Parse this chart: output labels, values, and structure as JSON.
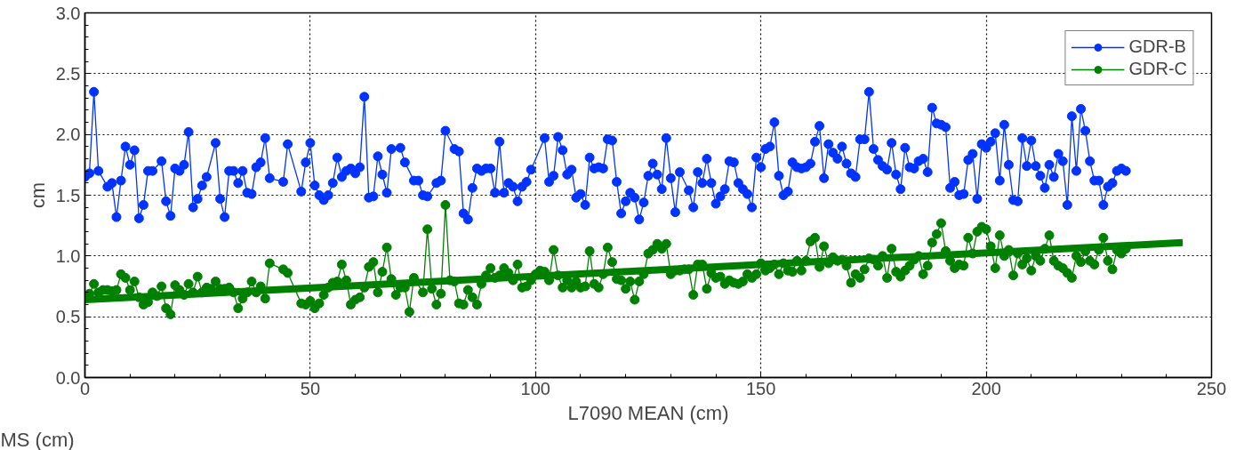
{
  "chart_data": {
    "type": "line",
    "xlabel": "L7090 MEAN (cm)",
    "ylabel": "cm",
    "xlim": [
      0,
      250
    ],
    "xticks": [
      0,
      50,
      100,
      150,
      200,
      250
    ],
    "ylim": [
      0,
      3
    ],
    "yticks": [
      {
        "value": 0,
        "label": "0.0"
      },
      0.5,
      {
        "value": 1,
        "label": "1.0"
      },
      1.5,
      {
        "value": 2,
        "label": "2.0"
      },
      2.5,
      {
        "value": 3,
        "label": "3.0"
      }
    ],
    "grid": true,
    "legend": "top right",
    "marker": "circle",
    "line_style": "solid",
    "annotations": [
      "MS (cm)"
    ],
    "series": [
      {
        "name": "GDR-B",
        "color": "#0033ff",
        "x": [
          0,
          1,
          2,
          3,
          5,
          6,
          7,
          8,
          9,
          10,
          11,
          12,
          13,
          14,
          15,
          17,
          18,
          19,
          20,
          21,
          22,
          23,
          24,
          25,
          26,
          27,
          29,
          30,
          31,
          32,
          33,
          34,
          35,
          36,
          37,
          38,
          39,
          40,
          41,
          44,
          45,
          48,
          49,
          50,
          51,
          52,
          53,
          54,
          55,
          56,
          57,
          58,
          59,
          60,
          61,
          62,
          63,
          64,
          65,
          66,
          67,
          68,
          70,
          71,
          73,
          74,
          75,
          76,
          78,
          79,
          80,
          82,
          83,
          84,
          85,
          86,
          87,
          88,
          89,
          90,
          91,
          92,
          93,
          94,
          95,
          96,
          97,
          98,
          99,
          102,
          103,
          104,
          105,
          106,
          107,
          108,
          109,
          110,
          111,
          112,
          113,
          114,
          115,
          116,
          117,
          118,
          119,
          120,
          121,
          122,
          123,
          124,
          125,
          126,
          127,
          128,
          129,
          130,
          131,
          132,
          134,
          135,
          136,
          137,
          138,
          139,
          140,
          141,
          142,
          143,
          144,
          145,
          146,
          147,
          148,
          149,
          150,
          151,
          152,
          153,
          154,
          155,
          156,
          157,
          158,
          159,
          160,
          161,
          162,
          163,
          164,
          165,
          166,
          167,
          168,
          169,
          170,
          171,
          172,
          173,
          174,
          175,
          176,
          177,
          178,
          179,
          180,
          181,
          182,
          183,
          184,
          185,
          186,
          187,
          188,
          189,
          190,
          191,
          192,
          193,
          194,
          195,
          196,
          197,
          198,
          199,
          200,
          201,
          202,
          203,
          204,
          205,
          206,
          207,
          208,
          209,
          210,
          211,
          212,
          213,
          214,
          215,
          216,
          217,
          218,
          219,
          220,
          221,
          222,
          223,
          224,
          225,
          226,
          227,
          228,
          229,
          230,
          231
        ],
        "values": [
          1.65,
          1.68,
          2.35,
          1.7,
          1.57,
          1.6,
          1.32,
          1.62,
          1.9,
          1.75,
          1.87,
          1.31,
          1.42,
          1.7,
          1.7,
          1.78,
          1.45,
          1.33,
          1.72,
          1.7,
          1.75,
          2.02,
          1.4,
          1.47,
          1.58,
          1.65,
          1.93,
          1.47,
          1.32,
          1.7,
          1.7,
          1.6,
          1.7,
          1.52,
          1.51,
          1.73,
          1.77,
          1.97,
          1.64,
          1.61,
          1.92,
          1.53,
          1.77,
          1.93,
          1.58,
          1.5,
          1.46,
          1.5,
          1.6,
          1.81,
          1.65,
          1.7,
          1.72,
          1.68,
          1.73,
          2.31,
          1.48,
          1.49,
          1.82,
          1.67,
          1.52,
          1.88,
          1.89,
          1.77,
          1.62,
          1.62,
          1.5,
          1.49,
          1.6,
          1.62,
          2.03,
          1.88,
          1.86,
          1.35,
          1.3,
          1.56,
          1.72,
          1.7,
          1.72,
          1.72,
          1.52,
          1.94,
          1.52,
          1.6,
          1.57,
          1.45,
          1.57,
          1.61,
          1.71,
          1.97,
          1.61,
          1.66,
          1.98,
          1.87,
          1.67,
          1.71,
          1.48,
          1.51,
          1.42,
          1.81,
          1.72,
          1.73,
          1.72,
          1.96,
          1.95,
          1.61,
          1.35,
          1.45,
          1.52,
          1.48,
          1.3,
          1.44,
          1.66,
          1.76,
          1.67,
          1.55,
          1.97,
          1.64,
          1.36,
          1.69,
          1.54,
          1.4,
          1.69,
          1.6,
          1.8,
          1.6,
          1.43,
          1.49,
          1.55,
          1.78,
          1.77,
          1.6,
          1.55,
          1.51,
          1.4,
          1.81,
          1.73,
          1.88,
          1.9,
          2.1,
          1.66,
          1.5,
          1.53,
          1.77,
          1.73,
          1.72,
          1.73,
          1.76,
          1.94,
          2.07,
          1.64,
          1.92,
          1.85,
          1.8,
          1.9,
          1.76,
          1.68,
          1.65,
          1.96,
          1.96,
          2.35,
          1.88,
          1.79,
          1.74,
          1.71,
          1.93,
          1.67,
          1.55,
          1.89,
          1.73,
          1.72,
          1.78,
          1.8,
          1.69,
          2.22,
          2.09,
          2.08,
          2.06,
          1.56,
          1.61,
          1.5,
          1.51,
          1.79,
          1.84,
          1.47,
          1.92,
          1.89,
          1.94,
          2.01,
          1.62,
          2.08,
          1.75,
          1.46,
          1.45,
          1.97,
          1.74,
          1.95,
          1.74,
          1.66,
          1.56,
          1.75,
          1.65,
          1.84,
          1.78,
          1.42,
          2.15,
          1.7,
          2.21,
          2.03,
          1.78,
          1.62,
          1.62,
          1.42,
          1.57,
          1.6,
          1.7,
          1.72,
          1.7
        ]
      },
      {
        "name": "GDR-C",
        "color": "#008000",
        "x": [
          0,
          1,
          2,
          3,
          4,
          5,
          6,
          7,
          8,
          9,
          10,
          11,
          12,
          13,
          14,
          15,
          16,
          17,
          18,
          19,
          20,
          21,
          22,
          23,
          24,
          25,
          26,
          27,
          28,
          29,
          30,
          31,
          32,
          33,
          34,
          35,
          36,
          37,
          38,
          39,
          40,
          41,
          44,
          45,
          48,
          49,
          50,
          51,
          52,
          53,
          54,
          55,
          56,
          57,
          58,
          59,
          60,
          61,
          62,
          63,
          64,
          65,
          66,
          67,
          68,
          69,
          70,
          71,
          72,
          73,
          75,
          76,
          77,
          78,
          79,
          80,
          81,
          82,
          83,
          84,
          85,
          86,
          87,
          88,
          89,
          90,
          91,
          92,
          93,
          94,
          95,
          96,
          97,
          98,
          99,
          100,
          101,
          102,
          103,
          104,
          105,
          106,
          107,
          108,
          109,
          110,
          111,
          112,
          113,
          114,
          115,
          116,
          117,
          118,
          119,
          120,
          121,
          122,
          123,
          124,
          125,
          126,
          127,
          128,
          129,
          130,
          131,
          132,
          133,
          134,
          135,
          136,
          137,
          138,
          139,
          140,
          141,
          142,
          143,
          144,
          145,
          146,
          147,
          148,
          149,
          150,
          151,
          152,
          153,
          154,
          155,
          156,
          157,
          158,
          159,
          160,
          161,
          162,
          163,
          164,
          165,
          166,
          167,
          168,
          169,
          170,
          171,
          172,
          173,
          174,
          175,
          176,
          177,
          178,
          179,
          180,
          181,
          182,
          183,
          184,
          185,
          186,
          187,
          188,
          189,
          190,
          191,
          192,
          193,
          194,
          195,
          196,
          197,
          198,
          199,
          200,
          201,
          202,
          203,
          204,
          205,
          206,
          207,
          208,
          209,
          210,
          211,
          212,
          213,
          214,
          215,
          216,
          217,
          218,
          219,
          220,
          221,
          222,
          223,
          224,
          225,
          226,
          227,
          228,
          229,
          230,
          231
        ],
        "values": [
          0.66,
          0.69,
          0.77,
          0.7,
          0.72,
          0.72,
          0.71,
          0.72,
          0.85,
          0.82,
          0.72,
          0.79,
          0.66,
          0.6,
          0.62,
          0.7,
          0.67,
          0.75,
          0.57,
          0.52,
          0.76,
          0.72,
          0.68,
          0.77,
          0.7,
          0.83,
          0.7,
          0.74,
          0.73,
          0.79,
          0.73,
          0.73,
          0.74,
          0.7,
          0.57,
          0.65,
          0.7,
          0.79,
          0.7,
          0.75,
          0.65,
          0.94,
          0.89,
          0.86,
          0.61,
          0.6,
          0.63,
          0.57,
          0.61,
          0.68,
          0.74,
          0.78,
          0.79,
          0.93,
          0.8,
          0.6,
          0.64,
          0.66,
          0.74,
          0.91,
          0.95,
          0.7,
          0.87,
          1.07,
          0.81,
          0.68,
          0.74,
          0.74,
          0.54,
          0.82,
          0.7,
          1.22,
          0.73,
          0.6,
          0.69,
          1.42,
          0.8,
          0.79,
          0.61,
          0.6,
          0.72,
          0.66,
          0.6,
          0.77,
          0.84,
          0.9,
          0.82,
          0.84,
          0.9,
          0.86,
          0.8,
          0.93,
          0.74,
          0.75,
          0.8,
          0.85,
          0.88,
          0.87,
          0.8,
          1.05,
          0.84,
          0.74,
          0.8,
          0.74,
          0.79,
          0.74,
          0.75,
          1.04,
          0.77,
          0.74,
          0.85,
          1.07,
          0.95,
          0.81,
          0.8,
          0.73,
          0.79,
          0.64,
          0.79,
          0.85,
          1.02,
          1.05,
          1.1,
          1.06,
          1.1,
          0.85,
          0.88,
          0.88,
          0.89,
          0.89,
          0.68,
          0.93,
          0.93,
          0.73,
          0.86,
          0.82,
          0.83,
          0.77,
          0.8,
          0.78,
          0.77,
          0.79,
          0.85,
          0.82,
          0.85,
          0.94,
          0.88,
          0.9,
          0.93,
          0.85,
          0.94,
          0.88,
          0.87,
          0.96,
          0.88,
          0.96,
          1.12,
          1.15,
          0.91,
          1.08,
          0.94,
          0.99,
          0.96,
          0.97,
          0.92,
          0.78,
          0.85,
          0.82,
          0.89,
          0.98,
          0.97,
          0.92,
          1.0,
          0.82,
          1.06,
          0.87,
          0.83,
          0.88,
          0.92,
          0.97,
          1.0,
          0.85,
          0.92,
          1.11,
          1.18,
          1.27,
          1.04,
          0.96,
          0.9,
          0.93,
          0.92,
          1.15,
          1.02,
          1.2,
          1.24,
          1.22,
          1.08,
          0.9,
          1.17,
          1.0,
          1.05,
          0.84,
          1.02,
          0.93,
          0.98,
          0.88,
          1.0,
          0.96,
          1.06,
          1.17,
          0.96,
          0.92,
          0.9,
          0.86,
          0.82,
          1.0,
          0.95,
          1.04,
          0.96,
          0.93,
          1.05,
          1.15,
          0.96,
          0.89,
          1.05,
          1.02,
          1.06
        ]
      },
      {
        "type": "line",
        "color": "#008000",
        "marker": "none",
        "x": [
          0,
          243.6
        ],
        "values": [
          0.64,
          1.11
        ]
      }
    ]
  }
}
